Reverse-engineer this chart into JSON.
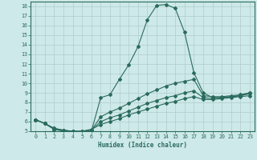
{
  "title": "",
  "xlabel": "Humidex (Indice chaleur)",
  "bg_color": "#cee9e9",
  "line_color": "#2a6b5e",
  "grid_color": "#b0cccc",
  "xlim": [
    -0.5,
    23.5
  ],
  "ylim": [
    5,
    18.5
  ],
  "xticks": [
    0,
    1,
    2,
    3,
    4,
    5,
    6,
    7,
    8,
    9,
    10,
    11,
    12,
    13,
    14,
    15,
    16,
    17,
    18,
    19,
    20,
    21,
    22,
    23
  ],
  "yticks": [
    5,
    6,
    7,
    8,
    9,
    10,
    11,
    12,
    13,
    14,
    15,
    16,
    17,
    18
  ],
  "series": [
    {
      "x": [
        0,
        1,
        2,
        3,
        4,
        5,
        6,
        7,
        8,
        9,
        10,
        11,
        12,
        13,
        14,
        15,
        16,
        17,
        18,
        19,
        20,
        21,
        22,
        23
      ],
      "y": [
        6.2,
        5.8,
        5.2,
        5.1,
        4.9,
        4.9,
        5.0,
        8.5,
        8.8,
        10.4,
        11.9,
        13.8,
        16.6,
        18.1,
        18.2,
        17.8,
        15.3,
        11.1,
        9.0,
        8.5,
        8.5,
        8.6,
        8.7,
        9.0
      ]
    },
    {
      "x": [
        0,
        1,
        2,
        3,
        4,
        5,
        6,
        7,
        8,
        9,
        10,
        11,
        12,
        13,
        14,
        15,
        16,
        17,
        18,
        19,
        20,
        21,
        22,
        23
      ],
      "y": [
        6.2,
        5.8,
        5.2,
        5.0,
        5.0,
        4.9,
        5.1,
        6.5,
        7.0,
        7.4,
        7.9,
        8.4,
        8.9,
        9.3,
        9.7,
        10.0,
        10.2,
        10.4,
        8.7,
        8.6,
        8.6,
        8.7,
        8.8,
        9.0
      ]
    },
    {
      "x": [
        0,
        1,
        2,
        3,
        4,
        5,
        6,
        7,
        8,
        9,
        10,
        11,
        12,
        13,
        14,
        15,
        16,
        17,
        18,
        19,
        20,
        21,
        22,
        23
      ],
      "y": [
        6.2,
        5.8,
        5.3,
        5.1,
        5.0,
        5.0,
        5.1,
        6.0,
        6.4,
        6.7,
        7.1,
        7.5,
        7.9,
        8.2,
        8.5,
        8.7,
        9.0,
        9.2,
        8.5,
        8.4,
        8.5,
        8.6,
        8.7,
        8.9
      ]
    },
    {
      "x": [
        0,
        1,
        2,
        3,
        4,
        5,
        6,
        7,
        8,
        9,
        10,
        11,
        12,
        13,
        14,
        15,
        16,
        17,
        18,
        19,
        20,
        21,
        22,
        23
      ],
      "y": [
        6.2,
        5.8,
        5.3,
        5.1,
        5.0,
        5.0,
        5.2,
        5.7,
        6.0,
        6.3,
        6.7,
        7.0,
        7.3,
        7.6,
        7.9,
        8.1,
        8.4,
        8.6,
        8.3,
        8.3,
        8.4,
        8.5,
        8.6,
        8.7
      ]
    }
  ]
}
